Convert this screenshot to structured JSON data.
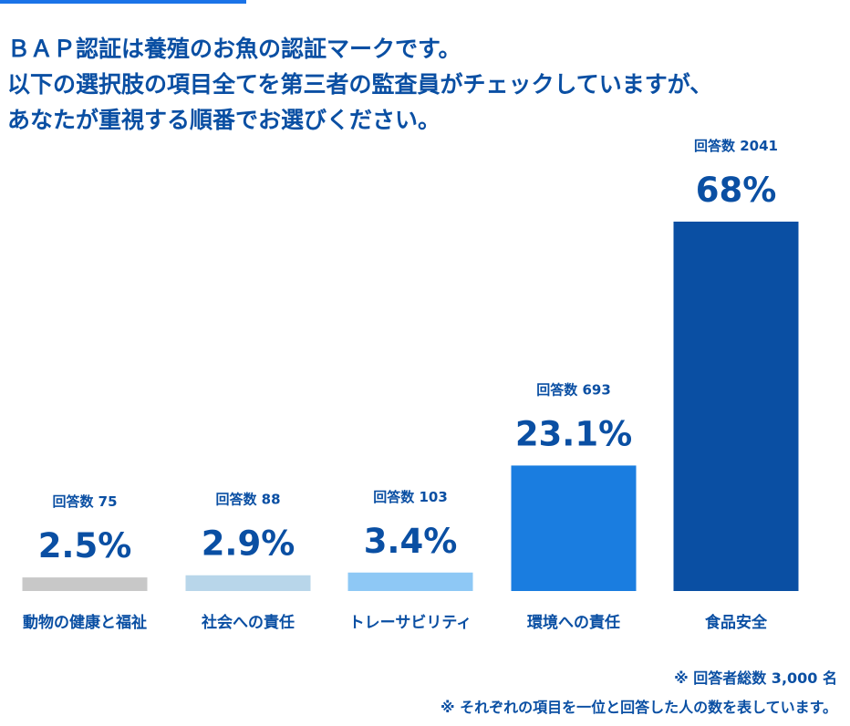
{
  "question": {
    "lines": [
      "ＢＡＰ認証は養殖のお魚の認証マークです。",
      "以下の選択肢の項目全てを第三者の監査員がチェックしていますが、",
      "あなたが重視する順番でお選びください。"
    ]
  },
  "chart_data": {
    "type": "bar",
    "title": "",
    "xlabel": "",
    "ylabel": "",
    "ylim": [
      0,
      68
    ],
    "count_prefix": "回答数",
    "categories": [
      "動物の健康と福祉",
      "社会への責任",
      "トレーサビリティ",
      "環境への責任",
      "食品安全"
    ],
    "values": [
      2.5,
      2.9,
      3.4,
      23.1,
      68
    ],
    "value_labels": [
      "2.5%",
      "2.9%",
      "3.4%",
      "23.1%",
      "68%"
    ],
    "counts": [
      75,
      88,
      103,
      693,
      2041
    ],
    "colors": [
      "#c8c8c8",
      "#b8d6ea",
      "#8ec8f5",
      "#1a7de0",
      "#0a4fa3"
    ]
  },
  "notes": {
    "total": "※ 回答者総数 3,000 名",
    "explanation": "※ それぞれの項目を一位と回答した人の数を表しています。"
  },
  "colors": {
    "text": "#0a4fa3",
    "accent": "#1a73e8"
  }
}
